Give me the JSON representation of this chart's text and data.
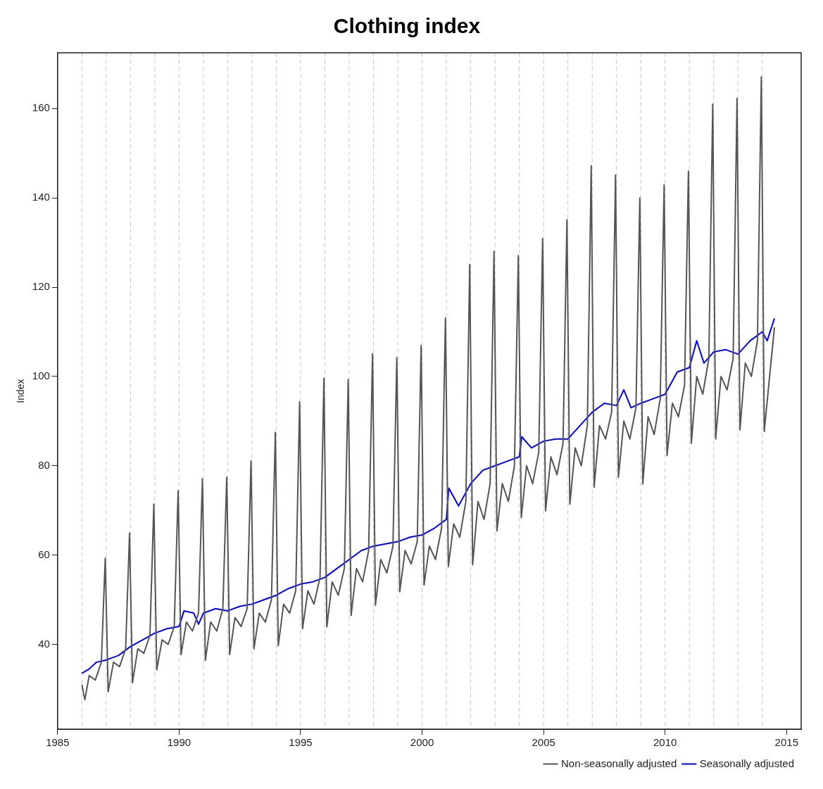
{
  "chart_data": {
    "type": "line",
    "title": "Clothing index",
    "ylabel": "Index",
    "xlim": [
      1985,
      2015.6
    ],
    "xticks": [
      1985,
      1990,
      1995,
      2000,
      2005,
      2010,
      2015
    ],
    "ylim": [
      21,
      172.5
    ],
    "yticks": [
      40,
      60,
      80,
      100,
      120,
      140,
      160
    ],
    "grid": false,
    "legend": "bottom right",
    "marker": "none",
    "line_style": "solid",
    "series": [
      {
        "name": "Non-seasonally adjusted",
        "color": "#555555",
        "x": [
          1986.0,
          1986.12,
          1986.3,
          1986.55,
          1986.8,
          1986.96,
          1987.08,
          1987.3,
          1987.55,
          1987.8,
          1987.96,
          1988.08,
          1988.3,
          1988.55,
          1988.8,
          1988.96,
          1989.08,
          1989.3,
          1989.55,
          1989.8,
          1989.96,
          1990.08,
          1990.3,
          1990.55,
          1990.8,
          1990.96,
          1991.08,
          1991.3,
          1991.55,
          1991.8,
          1991.96,
          1992.08,
          1992.3,
          1992.55,
          1992.8,
          1992.96,
          1993.08,
          1993.3,
          1993.55,
          1993.8,
          1993.96,
          1994.08,
          1994.3,
          1994.55,
          1994.8,
          1994.96,
          1995.08,
          1995.3,
          1995.55,
          1995.8,
          1995.96,
          1996.08,
          1996.3,
          1996.55,
          1996.8,
          1996.96,
          1997.08,
          1997.3,
          1997.55,
          1997.8,
          1997.96,
          1998.08,
          1998.3,
          1998.55,
          1998.8,
          1998.96,
          1999.08,
          1999.3,
          1999.55,
          1999.8,
          1999.96,
          2000.08,
          2000.3,
          2000.55,
          2000.8,
          2000.96,
          2001.08,
          2001.3,
          2001.55,
          2001.8,
          2001.96,
          2002.08,
          2002.3,
          2002.55,
          2002.8,
          2002.96,
          2003.08,
          2003.3,
          2003.55,
          2003.8,
          2003.96,
          2004.08,
          2004.3,
          2004.55,
          2004.8,
          2004.96,
          2005.08,
          2005.3,
          2005.55,
          2005.8,
          2005.96,
          2006.08,
          2006.3,
          2006.55,
          2006.8,
          2006.96,
          2007.08,
          2007.3,
          2007.55,
          2007.8,
          2007.96,
          2008.08,
          2008.3,
          2008.55,
          2008.8,
          2008.96,
          2009.08,
          2009.3,
          2009.55,
          2009.8,
          2009.96,
          2010.08,
          2010.3,
          2010.55,
          2010.8,
          2010.96,
          2011.08,
          2011.3,
          2011.55,
          2011.8,
          2011.96,
          2012.08,
          2012.3,
          2012.55,
          2012.8,
          2012.96,
          2013.08,
          2013.3,
          2013.55,
          2013.8,
          2013.96,
          2014.08,
          2014.3,
          2014.5
        ],
        "values": [
          31,
          27.6,
          33,
          32,
          36,
          59.3,
          29.4,
          36,
          35,
          39,
          64.9,
          31.4,
          39,
          38,
          42,
          71.4,
          34.3,
          41,
          40,
          44,
          74.4,
          37.7,
          45,
          43,
          47,
          77.1,
          36.4,
          45,
          43,
          48,
          77.4,
          37.7,
          46,
          44,
          48,
          81.1,
          39,
          47,
          45,
          50,
          87.5,
          39.7,
          49,
          47,
          52,
          94.3,
          43.5,
          52,
          49,
          55,
          99.6,
          43.9,
          54,
          51,
          57,
          99.3,
          46.5,
          57,
          54,
          61,
          105.1,
          48.8,
          59,
          56,
          62,
          104.2,
          51.8,
          61,
          58,
          63,
          106.9,
          53.3,
          62,
          59,
          66,
          113.1,
          57.4,
          67,
          64,
          72,
          125.1,
          57.8,
          72,
          68,
          76,
          128,
          65.4,
          76,
          72,
          80,
          127.1,
          68.4,
          80,
          76,
          83,
          130.9,
          69.9,
          82,
          78,
          85,
          135.1,
          71.4,
          84,
          80,
          89,
          147.2,
          75.2,
          89,
          86,
          92,
          145.1,
          77.4,
          90,
          86,
          93,
          140,
          75.9,
          91,
          87,
          95,
          142.9,
          82.3,
          94,
          91,
          98,
          146,
          85,
          100,
          96,
          104,
          161,
          86,
          100,
          97,
          104,
          162.3,
          88,
          103,
          100,
          108,
          167.1,
          87.7,
          100,
          111
        ]
      },
      {
        "name": "Seasonally adjusted",
        "color": "#0000ff",
        "x": [
          1986.0,
          1986.3,
          1986.6,
          1987.0,
          1987.5,
          1988.0,
          1988.5,
          1989.0,
          1989.5,
          1990.0,
          1990.2,
          1990.6,
          1990.8,
          1991.0,
          1991.5,
          1992.0,
          1992.5,
          1993.0,
          1993.5,
          1994.0,
          1994.5,
          1995.0,
          1995.5,
          1996.0,
          1996.5,
          1997.0,
          1997.5,
          1998.0,
          1998.5,
          1999.0,
          1999.5,
          2000.0,
          2000.5,
          2001.0,
          2001.1,
          2001.5,
          2002.0,
          2002.5,
          2003.0,
          2003.5,
          2004.0,
          2004.1,
          2004.5,
          2005.0,
          2005.5,
          2006.0,
          2006.5,
          2007.0,
          2007.5,
          2008.0,
          2008.3,
          2008.6,
          2009.0,
          2009.5,
          2010.0,
          2010.5,
          2011.0,
          2011.3,
          2011.6,
          2012.0,
          2012.5,
          2013.0,
          2013.5,
          2014.0,
          2014.2,
          2014.5
        ],
        "values": [
          33.5,
          34.5,
          36,
          36.5,
          37.5,
          39.5,
          41,
          42.5,
          43.5,
          44,
          47.5,
          47,
          44.5,
          47,
          48,
          47.5,
          48.5,
          49,
          50,
          51,
          52.5,
          53.5,
          54,
          55,
          57,
          59,
          61,
          62,
          62.5,
          63,
          64,
          64.5,
          66,
          68,
          75,
          71,
          76,
          79,
          80,
          81,
          82,
          86.5,
          84,
          85.5,
          86,
          86,
          89,
          92,
          94,
          93.5,
          97,
          93,
          94,
          95,
          96,
          101,
          102,
          108,
          103,
          105.5,
          106,
          105,
          108,
          110,
          108,
          113
        ]
      }
    ],
    "ref_lines": [
      {
        "axis": "x",
        "value": 1986
      },
      {
        "axis": "x",
        "value": 1987
      },
      {
        "axis": "x",
        "value": 1988
      },
      {
        "axis": "x",
        "value": 1989
      },
      {
        "axis": "x",
        "value": 1990
      },
      {
        "axis": "x",
        "value": 1991
      },
      {
        "axis": "x",
        "value": 1992
      },
      {
        "axis": "x",
        "value": 1993
      },
      {
        "axis": "x",
        "value": 1994
      },
      {
        "axis": "x",
        "value": 1995
      },
      {
        "axis": "x",
        "value": 1996
      },
      {
        "axis": "x",
        "value": 1997
      },
      {
        "axis": "x",
        "value": 1998
      },
      {
        "axis": "x",
        "value": 1999
      },
      {
        "axis": "x",
        "value": 2000
      },
      {
        "axis": "x",
        "value": 2001
      },
      {
        "axis": "x",
        "value": 2002
      },
      {
        "axis": "x",
        "value": 2003
      },
      {
        "axis": "x",
        "value": 2004
      },
      {
        "axis": "x",
        "value": 2005
      },
      {
        "axis": "x",
        "value": 2006
      },
      {
        "axis": "x",
        "value": 2007
      },
      {
        "axis": "x",
        "value": 2008
      },
      {
        "axis": "x",
        "value": 2009
      },
      {
        "axis": "x",
        "value": 2010
      },
      {
        "axis": "x",
        "value": 2011
      },
      {
        "axis": "x",
        "value": 2012
      },
      {
        "axis": "x",
        "value": 2013
      },
      {
        "axis": "x",
        "value": 2014
      }
    ]
  }
}
